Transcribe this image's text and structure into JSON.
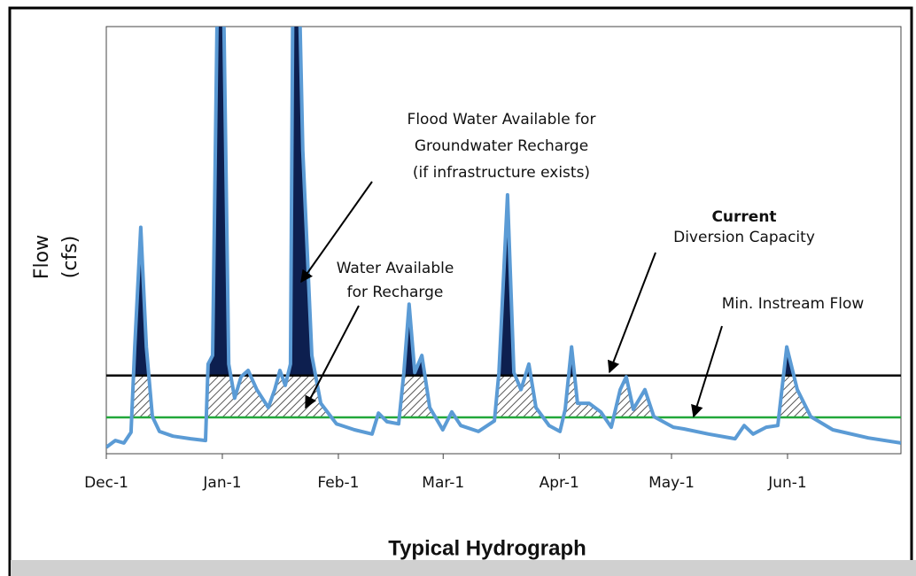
{
  "chart_data": {
    "type": "line",
    "title": "Typical Hydrograph",
    "y_label": [
      "Flow",
      "(cfs)"
    ],
    "xlim": [
      0,
      212.3
    ],
    "ylim": [
      0,
      100
    ],
    "xticks": [
      {
        "value": 0,
        "label": "Dec-1"
      },
      {
        "value": 31,
        "label": "Jan-1"
      },
      {
        "value": 62,
        "label": "Feb-1"
      },
      {
        "value": 90,
        "label": "Mar-1"
      },
      {
        "value": 121,
        "label": "Apr-1"
      },
      {
        "value": 151,
        "label": "May-1"
      },
      {
        "value": 182,
        "label": "Jun-1"
      }
    ],
    "color": "#5b9bd5",
    "x": [
      0,
      2.4,
      4.7,
      6.6,
      7.6,
      9.2,
      10.7,
      12.3,
      14.2,
      17.8,
      22.5,
      26.5,
      27.2,
      28.4,
      29.8,
      31.2,
      32.7,
      34.3,
      36,
      37.9,
      40.2,
      43.3,
      45,
      46.4,
      47.8,
      49.2,
      49.9,
      51.4,
      52.5,
      54.9,
      57.3,
      61.5,
      66.3,
      71,
      72.7,
      75,
      78.1,
      79.5,
      80.9,
      82.4,
      84.3,
      86.4,
      89.9,
      92.3,
      94.7,
      99.4,
      103.7,
      104.9,
      107.2,
      108.9,
      110.8,
      112.9,
      114.8,
      118.3,
      121.2,
      122.6,
      124.3,
      125.9,
      129,
      132.1,
      134.9,
      137.3,
      138.9,
      140.8,
      143.9,
      146.3,
      151.5,
      154.3,
      160.9,
      168,
      170.4,
      172.8,
      176.3,
      179.4,
      181.8,
      184.6,
      188.2,
      194.1,
      203.6,
      212.3
    ],
    "values": [
      1.5,
      3.1,
      2.5,
      5,
      25,
      53,
      25,
      8.7,
      5.2,
      4.1,
      3.5,
      3.1,
      21,
      23,
      115,
      115,
      21,
      13,
      18,
      19.5,
      15,
      10.8,
      15,
      19.5,
      16,
      21,
      115,
      115,
      71,
      23,
      11.8,
      7,
      5.6,
      4.6,
      9.5,
      7.5,
      7,
      19,
      35,
      19,
      23,
      10.8,
      5.6,
      9.8,
      6.6,
      5.2,
      7.7,
      19,
      60.6,
      19,
      15,
      21,
      10.8,
      6.6,
      5.2,
      10.4,
      25,
      11.8,
      11.8,
      9.8,
      6.2,
      15,
      18,
      10.4,
      15,
      8.7,
      6.2,
      5.8,
      4.6,
      3.5,
      6.6,
      4.6,
      6.2,
      6.6,
      25,
      15,
      8.7,
      5.6,
      3.7,
      2.5
    ],
    "reference_lines": [
      {
        "name": "Current Diversion Capacity",
        "value": 18.3,
        "color": "#000000"
      },
      {
        "name": "Min. Instream Flow",
        "value": 8.5,
        "color": "#22a83a"
      }
    ],
    "fills": {
      "above_capacity": "#0d1f4f",
      "hatch": "#555555"
    },
    "annotations": [
      {
        "lines": [
          "Flood Water Available  for",
          "Groundwater Recharge",
          "(if infrastructure exists)"
        ]
      },
      {
        "lines": [
          "Water Available",
          "for Recharge"
        ]
      },
      {
        "lines": [
          "Current",
          "Diversion Capacity"
        ]
      },
      {
        "lines": [
          "Min. Instream Flow"
        ]
      }
    ]
  }
}
